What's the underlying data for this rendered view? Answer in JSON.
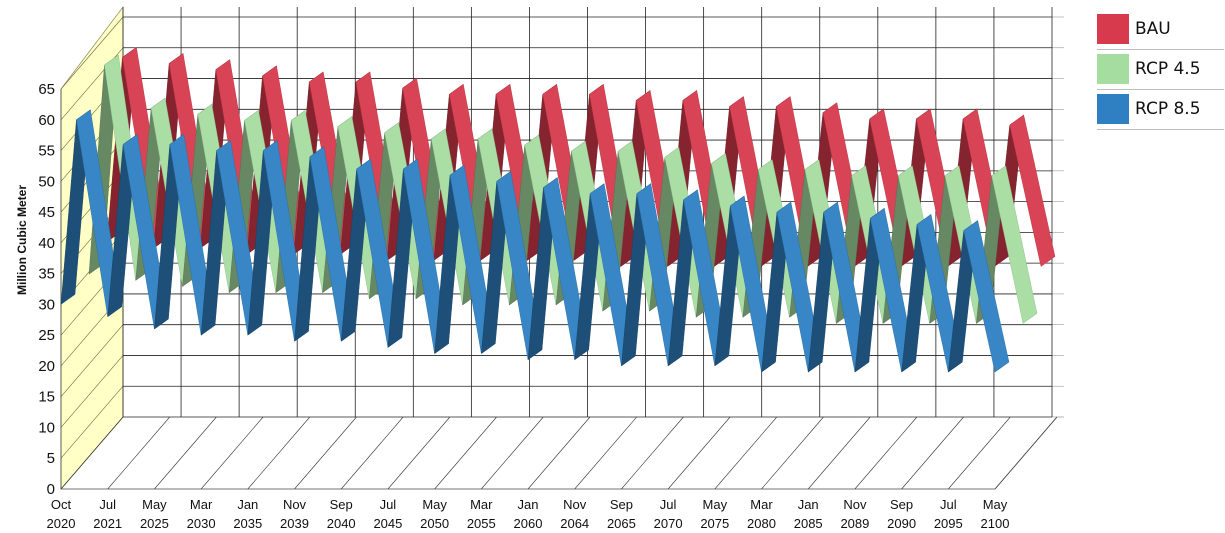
{
  "chart_data": {
    "type": "area",
    "title": "",
    "ylabel": "Million Cubic Meter",
    "xlabel": "",
    "ylim": [
      0,
      65
    ],
    "y_ticks": [
      "0",
      "5",
      "10",
      "15",
      "20",
      "25",
      "30",
      "35",
      "40",
      "45",
      "50",
      "55",
      "60",
      "65"
    ],
    "x_ticks": [
      {
        "month": "Oct",
        "year": "2020"
      },
      {
        "month": "Jul",
        "year": "2021"
      },
      {
        "month": "May",
        "year": "2025"
      },
      {
        "month": "Mar",
        "year": "2030"
      },
      {
        "month": "Jan",
        "year": "2035"
      },
      {
        "month": "Nov",
        "year": "2039"
      },
      {
        "month": "Sep",
        "year": "2040"
      },
      {
        "month": "Jul",
        "year": "2045"
      },
      {
        "month": "May",
        "year": "2050"
      },
      {
        "month": "Mar",
        "year": "2055"
      },
      {
        "month": "Jan",
        "year": "2060"
      },
      {
        "month": "Nov",
        "year": "2064"
      },
      {
        "month": "Sep",
        "year": "2065"
      },
      {
        "month": "Jul",
        "year": "2070"
      },
      {
        "month": "May",
        "year": "2075"
      },
      {
        "month": "Mar",
        "year": "2080"
      },
      {
        "month": "Jan",
        "year": "2085"
      },
      {
        "month": "Nov",
        "year": "2089"
      },
      {
        "month": "Sep",
        "year": "2090"
      },
      {
        "month": "Jul",
        "year": "2095"
      },
      {
        "month": "May",
        "year": "2100"
      }
    ],
    "series": [
      {
        "name": "BAU",
        "color": "#d63a4c",
        "peaks": [
          63,
          62,
          61,
          60,
          59,
          59,
          58,
          57,
          57,
          57,
          57,
          56,
          56,
          55,
          55,
          54,
          53,
          53,
          53,
          52
        ],
        "troughs": [
          33,
          32,
          32,
          31,
          31,
          31,
          30,
          30,
          30,
          30,
          30,
          29,
          29,
          29,
          29,
          29,
          29,
          29,
          29,
          29,
          29
        ]
      },
      {
        "name": "RCP 4.5",
        "color": "#a5dca0",
        "peaks": [
          65,
          58,
          57,
          56,
          56,
          55,
          54,
          53,
          53,
          52,
          51,
          51,
          50,
          49,
          48,
          48,
          47,
          47,
          47,
          47
        ],
        "troughs": [
          31,
          30,
          29,
          28,
          28,
          28,
          27,
          27,
          26,
          26,
          26,
          25,
          25,
          24,
          24,
          24,
          23,
          23,
          23,
          23,
          23
        ]
      },
      {
        "name": "RCP 8.5",
        "color": "#2e80c2",
        "peaks": [
          60,
          56,
          56,
          55,
          55,
          54,
          52,
          52,
          51,
          50,
          49,
          48,
          48,
          47,
          46,
          45,
          45,
          44,
          43,
          42
        ],
        "troughs": [
          30,
          28,
          26,
          25,
          25,
          24,
          24,
          23,
          22,
          22,
          21,
          21,
          20,
          20,
          20,
          19,
          19,
          19,
          19,
          19,
          19
        ]
      }
    ],
    "grid": true,
    "legend": "top-right"
  }
}
